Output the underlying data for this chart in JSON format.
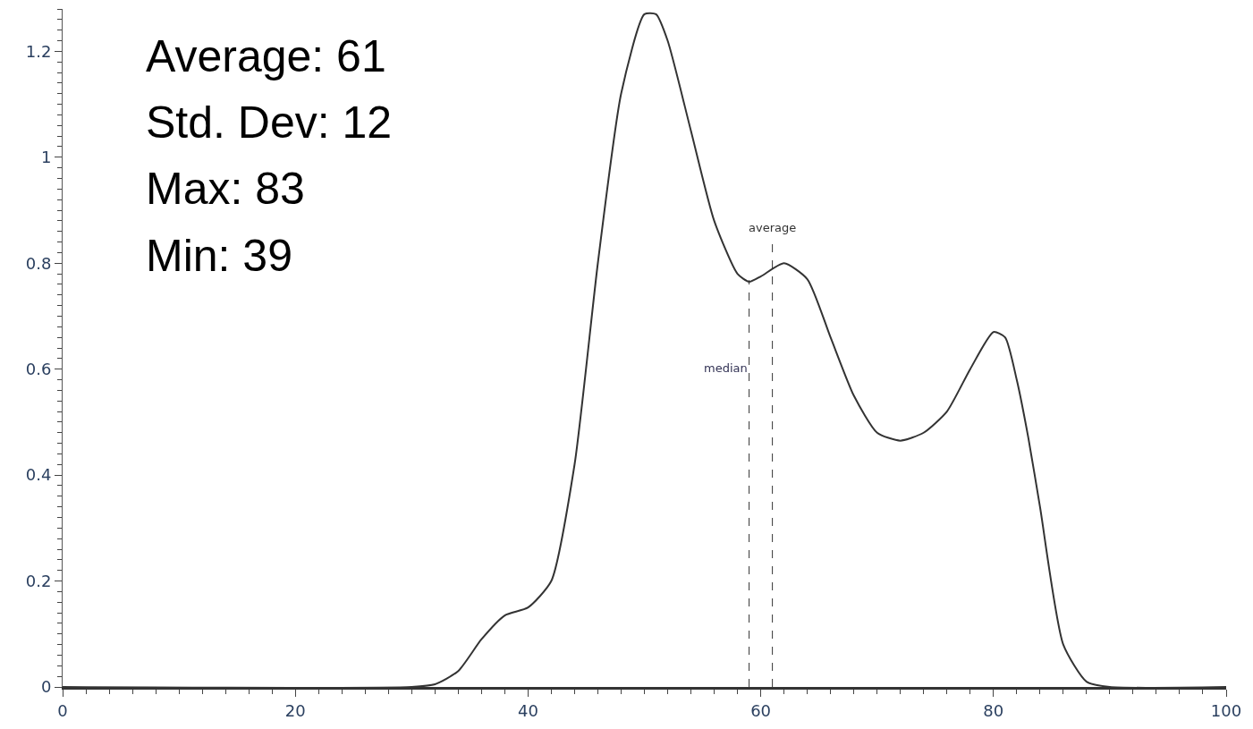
{
  "chart_data": {
    "type": "line",
    "x": [
      0,
      30,
      32,
      34,
      36,
      38,
      40,
      42,
      44,
      46,
      48,
      50,
      51,
      52,
      54,
      56,
      58,
      59,
      60,
      62,
      64,
      66,
      68,
      70,
      72,
      74,
      76,
      78,
      80,
      81,
      82,
      83,
      84,
      86,
      88,
      90,
      100
    ],
    "series": [
      {
        "color": "#333333",
        "values": [
          0,
          0,
          0.005,
          0.03,
          0.09,
          0.135,
          0.15,
          0.2,
          0.42,
          0.8,
          1.12,
          1.27,
          1.27,
          1.22,
          1.05,
          0.88,
          0.78,
          0.765,
          0.775,
          0.8,
          0.77,
          0.66,
          0.55,
          0.48,
          0.465,
          0.48,
          0.52,
          0.6,
          0.67,
          0.66,
          0.58,
          0.47,
          0.34,
          0.08,
          0.01,
          0,
          0
        ]
      }
    ],
    "xlim": [
      0,
      100
    ],
    "xticks": [
      0,
      20,
      40,
      60,
      80,
      100
    ],
    "ylim": [
      0,
      1.28
    ],
    "yticks": [
      0,
      0.2,
      0.4,
      0.6,
      0.8,
      1,
      1.2
    ],
    "marker": "none",
    "line_style": "solid",
    "ref_lines": [
      {
        "axis": "x",
        "value": 59,
        "label": "median",
        "line_style": "dashed",
        "color": "#333333"
      },
      {
        "axis": "x",
        "value": 61,
        "label": "average",
        "line_style": "dashed",
        "color": "#333333"
      }
    ],
    "annotations": [
      "Average: 61",
      "Std. Dev: 12",
      "Max: 83",
      "Min: 39"
    ]
  }
}
